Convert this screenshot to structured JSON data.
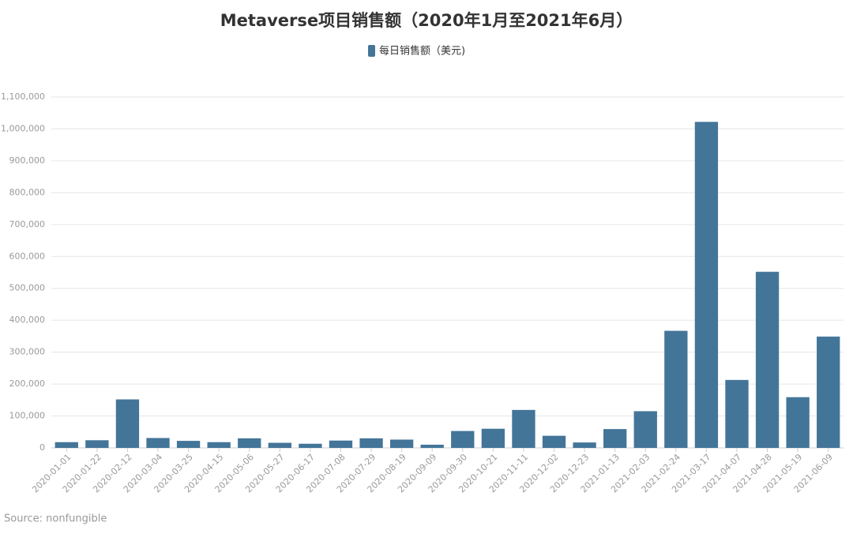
{
  "chart_data": {
    "type": "bar",
    "title": "Metaverse项目销售额（2020年1月至2021年6月）",
    "source": "Source: nonfungible",
    "categories": [
      "2020-01-01",
      "2020-01-22",
      "2020-02-12",
      "2020-03-04",
      "2020-03-25",
      "2020-04-15",
      "2020-05-06",
      "2020-05-27",
      "2020-06-17",
      "2020-07-08",
      "2020-07-29",
      "2020-08-19",
      "2020-09-09",
      "2020-09-30",
      "2020-10-21",
      "2020-11-11",
      "2020-12-02",
      "2020-12-23",
      "2021-01-13",
      "2021-02-03",
      "2021-02-24",
      "2021-03-17",
      "2021-04-07",
      "2021-04-28",
      "2021-05-19",
      "2021-06-09"
    ],
    "series": [
      {
        "name": "每日销售额（美元)",
        "color": "#437599",
        "values": [
          18000,
          24000,
          152000,
          31000,
          22000,
          18000,
          30000,
          16000,
          13000,
          23000,
          30000,
          26000,
          10000,
          53000,
          60000,
          119000,
          38000,
          17000,
          59000,
          115000,
          367000,
          1022000,
          213000,
          552000,
          159000,
          349000
        ]
      }
    ],
    "ylim": [
      0,
      1100000
    ],
    "yticks": [
      0,
      {
        "value": 100000,
        "label": "100,000"
      },
      {
        "value": 200000,
        "label": "200,000"
      },
      {
        "value": 300000,
        "label": "300,000"
      },
      {
        "value": 400000,
        "label": "400,000"
      },
      {
        "value": 500000,
        "label": "500,000"
      },
      {
        "value": 600000,
        "label": "600,000"
      },
      {
        "value": 700000,
        "label": "700,000"
      },
      {
        "value": 800000,
        "label": "800,000"
      },
      {
        "value": 900000,
        "label": "900,000"
      },
      {
        "value": 1000000,
        "label": "1,000,000"
      },
      {
        "value": 1100000,
        "label": "1,100,000"
      }
    ],
    "grid": true
  }
}
